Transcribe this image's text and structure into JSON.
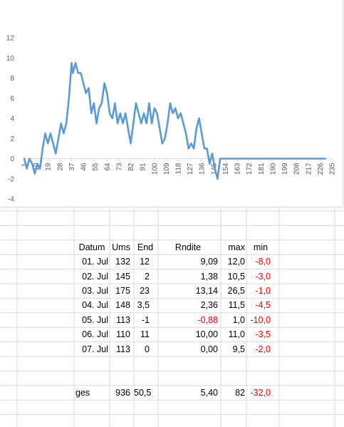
{
  "colors": {
    "series_line": "#5b9bd5",
    "axis": "#d9d9d9",
    "gridline": "#d9d9d9",
    "negative": "#ff0000"
  },
  "chart_data": {
    "type": "line",
    "title": "",
    "xlabel": "",
    "ylabel": "",
    "ylim": [
      -4,
      12
    ],
    "xlim": [
      1,
      235
    ],
    "y_ticks": [
      "12",
      "10",
      "8",
      "6",
      "4",
      "2",
      "0",
      "-2",
      "-4"
    ],
    "x_ticks": [
      "1",
      "10",
      "19",
      "28",
      "37",
      "46",
      "55",
      "64",
      "73",
      "82",
      "91",
      "100",
      "109",
      "118",
      "127",
      "136",
      "145",
      "154",
      "163",
      "172",
      "181",
      "190",
      "199",
      "208",
      "217",
      "226",
      "235"
    ],
    "grid": false,
    "legend": "none",
    "series": [
      {
        "x": [
          1,
          3,
          5,
          7,
          9,
          11,
          13,
          15,
          17,
          19,
          21,
          23,
          25,
          27,
          29,
          31,
          33,
          35,
          37,
          38,
          40,
          42,
          44,
          46,
          48,
          50,
          52,
          54,
          56,
          58,
          60,
          62,
          64,
          66,
          68,
          70,
          72,
          74,
          76,
          78,
          80,
          82,
          84,
          86,
          88,
          90,
          92,
          94,
          96,
          98,
          100,
          102,
          104,
          106,
          108,
          110,
          112,
          114,
          116,
          118,
          120,
          122,
          124,
          126,
          128,
          130,
          132,
          134,
          136,
          138,
          140,
          142,
          144,
          146,
          148,
          150,
          152,
          154,
          156,
          157,
          160,
          163,
          172,
          181,
          190,
          199,
          208,
          217,
          226,
          230
        ],
        "y": [
          0,
          -1,
          0,
          -0.5,
          -1.5,
          -0.5,
          -1,
          1,
          2.5,
          1.5,
          2.5,
          1.5,
          0.5,
          2,
          3.5,
          2.5,
          3.5,
          6,
          9.5,
          8.5,
          9.5,
          8.5,
          8.5,
          7.5,
          6.5,
          7,
          4.5,
          5.5,
          3.5,
          5,
          5.5,
          7.5,
          6.5,
          4.5,
          4,
          5.5,
          3.5,
          4.5,
          3.5,
          4.5,
          3,
          1.5,
          3.5,
          5.5,
          4.5,
          3.5,
          4.5,
          3.5,
          5.5,
          3.5,
          5,
          4.5,
          3,
          1.5,
          2,
          3.5,
          5.5,
          4.5,
          5,
          4,
          4.5,
          3.5,
          2.5,
          1,
          1.5,
          1,
          3,
          4,
          2.5,
          1,
          1,
          -0.5,
          0.5,
          -1,
          -2,
          0,
          0,
          0,
          0,
          0,
          0,
          0,
          0,
          0,
          0,
          0,
          0,
          0,
          0,
          0
        ]
      }
    ]
  },
  "table": {
    "headers": [
      "Datum",
      "Ums",
      "End",
      "Rndite",
      "max",
      "min"
    ],
    "rows": [
      {
        "datum": "01. Jul",
        "ums": "132",
        "end": "12",
        "rndite": "9,09",
        "max": "12,0",
        "min": "-8,0"
      },
      {
        "datum": "02. Jul",
        "ums": "145",
        "end": "2",
        "rndite": "1,38",
        "max": "10,5",
        "min": "-3,0"
      },
      {
        "datum": "03. Jul",
        "ums": "175",
        "end": "23",
        "rndite": "13,14",
        "max": "26,5",
        "min": "-1,0"
      },
      {
        "datum": "04. Jul",
        "ums": "148",
        "end": "3,5",
        "rndite": "2,36",
        "max": "11,5",
        "min": "-4,5"
      },
      {
        "datum": "05. Jul",
        "ums": "113",
        "end": "-1",
        "rndite": "-0,88",
        "max": "1,0",
        "min": "-10,0"
      },
      {
        "datum": "06. Jul",
        "ums": "110",
        "end": "11",
        "rndite": "10,00",
        "max": "11,0",
        "min": "-3,5"
      },
      {
        "datum": "07. Jul",
        "ums": "113",
        "end": "0",
        "rndite": "0,00",
        "max": "9,5",
        "min": "-2,0"
      }
    ],
    "total": {
      "datum": "ges",
      "ums": "936",
      "end": "50,5",
      "rndite": "5,40",
      "max": "82",
      "min": "-32,0"
    }
  }
}
